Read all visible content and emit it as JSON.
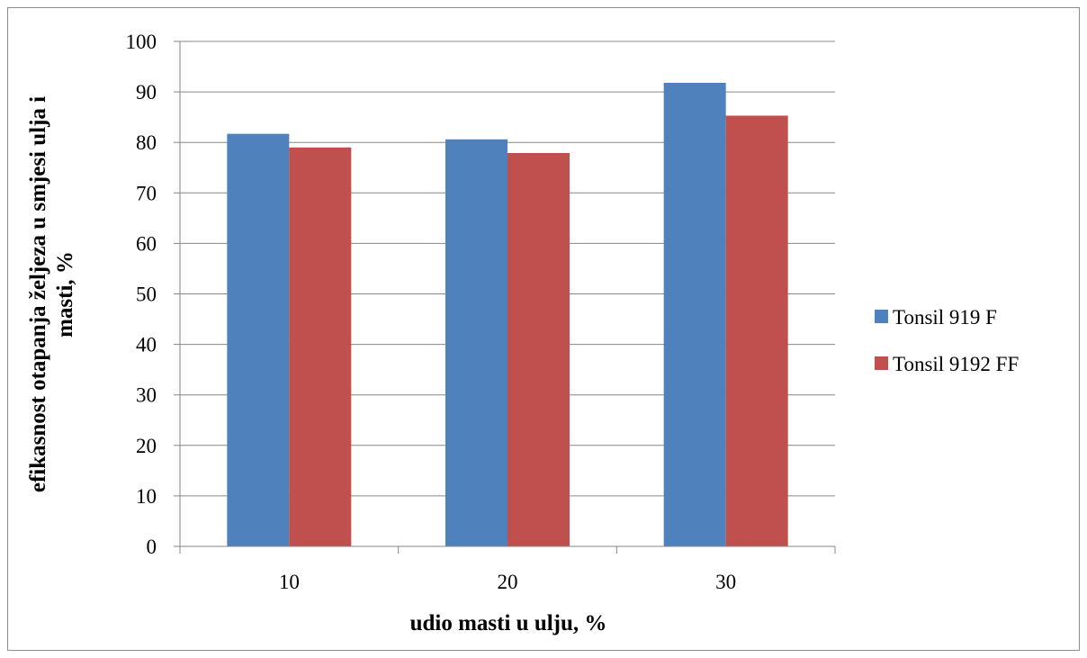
{
  "chart_data": {
    "type": "bar",
    "categories": [
      "10",
      "20",
      "30"
    ],
    "series": [
      {
        "name": "Tonsil 919 F",
        "color": "#4f81bd",
        "values": [
          81.7,
          80.6,
          91.8
        ]
      },
      {
        "name": "Tonsil 9192 FF",
        "color": "#c0504d",
        "values": [
          79.0,
          77.9,
          85.3
        ]
      }
    ],
    "xlabel": "udio masti u ulju, %",
    "ylabel_lines": [
      "efikasnost otapanja željeza u smjesi ulja i",
      "masti, %"
    ],
    "ylim": [
      0,
      100
    ],
    "yticks": [
      0,
      10,
      20,
      30,
      40,
      50,
      60,
      70,
      80,
      90,
      100
    ],
    "grid": true,
    "legend_position": "right"
  }
}
